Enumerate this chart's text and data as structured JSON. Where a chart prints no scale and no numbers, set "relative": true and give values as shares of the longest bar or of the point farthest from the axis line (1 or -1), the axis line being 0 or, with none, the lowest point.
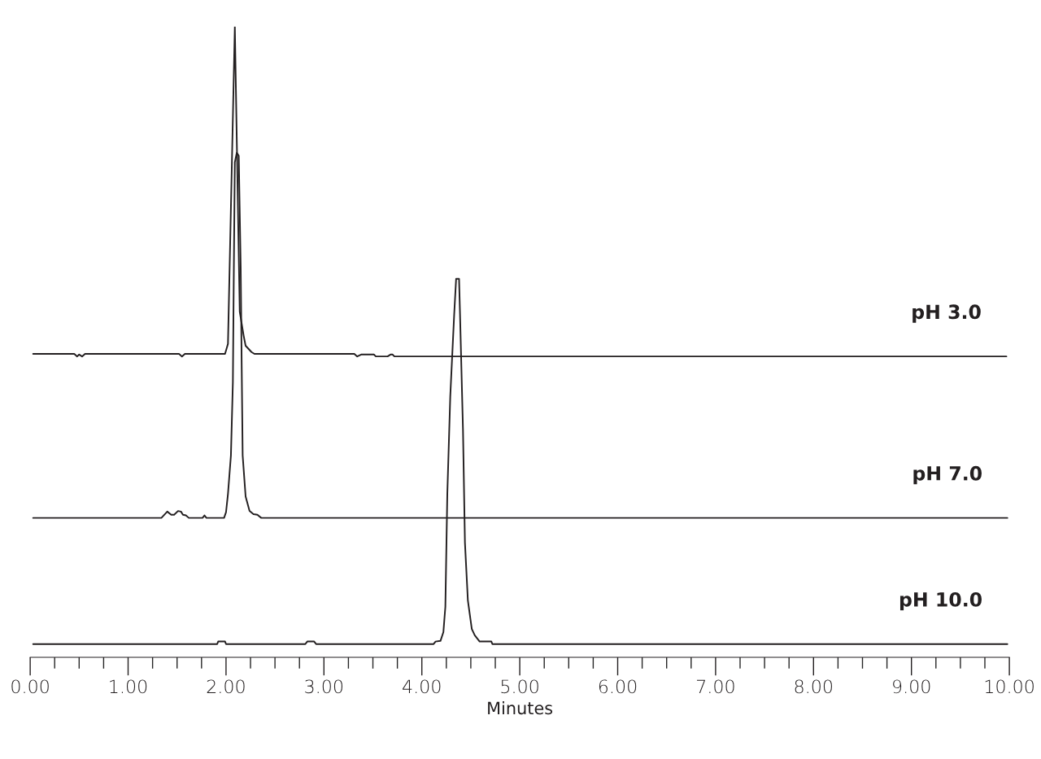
{
  "chart_data": {
    "type": "line",
    "relative": true,
    "xlabel": "Minutes",
    "xlim": [
      0,
      10
    ],
    "xticks": [
      {
        "value": 0,
        "label": "0.00"
      },
      {
        "value": 0.25,
        "label": null
      },
      {
        "value": 0.5,
        "label": null
      },
      {
        "value": 0.75,
        "label": null
      },
      {
        "value": 1,
        "label": "1.00"
      },
      {
        "value": 1.25,
        "label": null
      },
      {
        "value": 1.5,
        "label": null
      },
      {
        "value": 1.75,
        "label": null
      },
      {
        "value": 2,
        "label": "2.00"
      },
      {
        "value": 2.25,
        "label": null
      },
      {
        "value": 2.5,
        "label": null
      },
      {
        "value": 2.75,
        "label": null
      },
      {
        "value": 3,
        "label": "3.00"
      },
      {
        "value": 3.25,
        "label": null
      },
      {
        "value": 3.5,
        "label": null
      },
      {
        "value": 3.75,
        "label": null
      },
      {
        "value": 4,
        "label": "4.00"
      },
      {
        "value": 4.25,
        "label": null
      },
      {
        "value": 4.5,
        "label": null
      },
      {
        "value": 4.75,
        "label": null
      },
      {
        "value": 5,
        "label": "5.00"
      },
      {
        "value": 5.25,
        "label": null
      },
      {
        "value": 5.5,
        "label": null
      },
      {
        "value": 5.75,
        "label": null
      },
      {
        "value": 6,
        "label": "6.00"
      },
      {
        "value": 6.25,
        "label": null
      },
      {
        "value": 6.5,
        "label": null
      },
      {
        "value": 6.75,
        "label": null
      },
      {
        "value": 7,
        "label": "7.00"
      },
      {
        "value": 7.25,
        "label": null
      },
      {
        "value": 7.5,
        "label": null
      },
      {
        "value": 7.75,
        "label": null
      },
      {
        "value": 8,
        "label": "8.00"
      },
      {
        "value": 8.25,
        "label": null
      },
      {
        "value": 8.5,
        "label": null
      },
      {
        "value": 8.75,
        "label": null
      },
      {
        "value": 9,
        "label": "9.00"
      },
      {
        "value": 9.25,
        "label": null
      },
      {
        "value": 9.5,
        "label": null
      },
      {
        "value": 9.75,
        "label": null
      },
      {
        "value": 10,
        "label": "10.00"
      }
    ],
    "tick_labels": "x",
    "grid": false,
    "legend": false,
    "marker": "none",
    "line_style": "solid",
    "series": [
      {
        "name": "pH 3.0",
        "color": "#231f20",
        "x": [
          0.03,
          0.45,
          0.48,
          0.5,
          0.53,
          0.56,
          1.52,
          1.55,
          1.58,
          1.99,
          2.02,
          2.09,
          2.14,
          2.18,
          2.2,
          2.26,
          2.29,
          3.31,
          3.34,
          3.38,
          3.51,
          3.53,
          3.65,
          3.68,
          3.7,
          3.72,
          9.97
        ],
        "values": [
          0.481,
          0.481,
          0.477,
          0.48,
          0.477,
          0.481,
          0.481,
          0.477,
          0.481,
          0.481,
          0.497,
          1.0,
          0.548,
          0.51,
          0.494,
          0.484,
          0.481,
          0.481,
          0.477,
          0.48,
          0.48,
          0.477,
          0.477,
          0.48,
          0.48,
          0.477,
          0.477
        ]
      },
      {
        "name": "pH 7.0",
        "color": "#231f20",
        "x": [
          0.03,
          1.34,
          1.4,
          1.44,
          1.47,
          1.51,
          1.54,
          1.56,
          1.59,
          1.62,
          1.76,
          1.78,
          1.8,
          1.98,
          2.0,
          2.02,
          2.05,
          2.07,
          2.08,
          2.09,
          2.11,
          2.13,
          2.15,
          2.16,
          2.17,
          2.2,
          2.24,
          2.28,
          2.32,
          2.36,
          9.98
        ],
        "values": [
          0.221,
          0.221,
          0.231,
          0.226,
          0.226,
          0.232,
          0.231,
          0.226,
          0.225,
          0.221,
          0.221,
          0.225,
          0.221,
          0.221,
          0.23,
          0.259,
          0.32,
          0.436,
          0.617,
          0.785,
          0.8,
          0.795,
          0.617,
          0.462,
          0.32,
          0.255,
          0.232,
          0.227,
          0.226,
          0.221,
          0.221
        ]
      },
      {
        "name": "pH 10.0",
        "color": "#231f20",
        "x": [
          0.03,
          1.91,
          1.92,
          1.99,
          2.0,
          2.81,
          2.83,
          2.9,
          2.92,
          4.12,
          4.14,
          4.19,
          4.22,
          4.24,
          4.26,
          4.29,
          4.33,
          4.35,
          4.38,
          4.39,
          4.42,
          4.44,
          4.47,
          4.51,
          4.54,
          4.59,
          4.71,
          4.72,
          9.98
        ],
        "values": [
          0.021,
          0.021,
          0.025,
          0.025,
          0.021,
          0.021,
          0.025,
          0.025,
          0.021,
          0.021,
          0.025,
          0.026,
          0.04,
          0.08,
          0.259,
          0.413,
          0.543,
          0.6,
          0.6,
          0.543,
          0.361,
          0.182,
          0.09,
          0.045,
          0.035,
          0.025,
          0.025,
          0.021,
          0.021
        ]
      }
    ]
  }
}
